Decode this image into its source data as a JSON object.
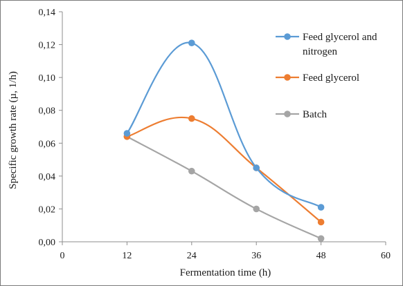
{
  "chart_data": {
    "type": "line",
    "smooth": true,
    "xlabel": "Fermentation time (h)",
    "ylabel": "Specific growth rate (µ, 1/h)",
    "xlim": [
      0,
      60
    ],
    "ylim": [
      0,
      0.14
    ],
    "x_ticks": [
      {
        "value": 0,
        "label": "0"
      },
      {
        "value": 12,
        "label": "12"
      },
      {
        "value": 24,
        "label": "24"
      },
      {
        "value": 36,
        "label": "36"
      },
      {
        "value": 48,
        "label": "48"
      },
      {
        "value": 60,
        "label": "60"
      }
    ],
    "y_ticks": [
      {
        "value": 0,
        "label": "0,00"
      },
      {
        "value": 0.02,
        "label": "0,02"
      },
      {
        "value": 0.04,
        "label": "0,04"
      },
      {
        "value": 0.06,
        "label": "0,06"
      },
      {
        "value": 0.08,
        "label": "0,08"
      },
      {
        "value": 0.1,
        "label": "0,10"
      },
      {
        "value": 0.12,
        "label": "0,12"
      },
      {
        "value": 0.14,
        "label": "0,14"
      }
    ],
    "grid": false,
    "legend_position": "right",
    "x": [
      12,
      24,
      36,
      48
    ],
    "series": [
      {
        "name": "Feed glycerol and nitrogen",
        "legend_lines": [
          "Feed glycerol and",
          "nitrogen"
        ],
        "color": "#5B9BD5",
        "values": [
          0.066,
          0.121,
          0.045,
          0.021
        ]
      },
      {
        "name": "Feed glycerol",
        "legend_lines": [
          "Feed glycerol"
        ],
        "color": "#ED7D31",
        "values": [
          0.064,
          0.075,
          0.045,
          0.012
        ]
      },
      {
        "name": "Batch",
        "legend_lines": [
          "Batch"
        ],
        "color": "#A5A5A5",
        "values": [
          0.064,
          0.043,
          0.02,
          0.002
        ]
      }
    ]
  }
}
